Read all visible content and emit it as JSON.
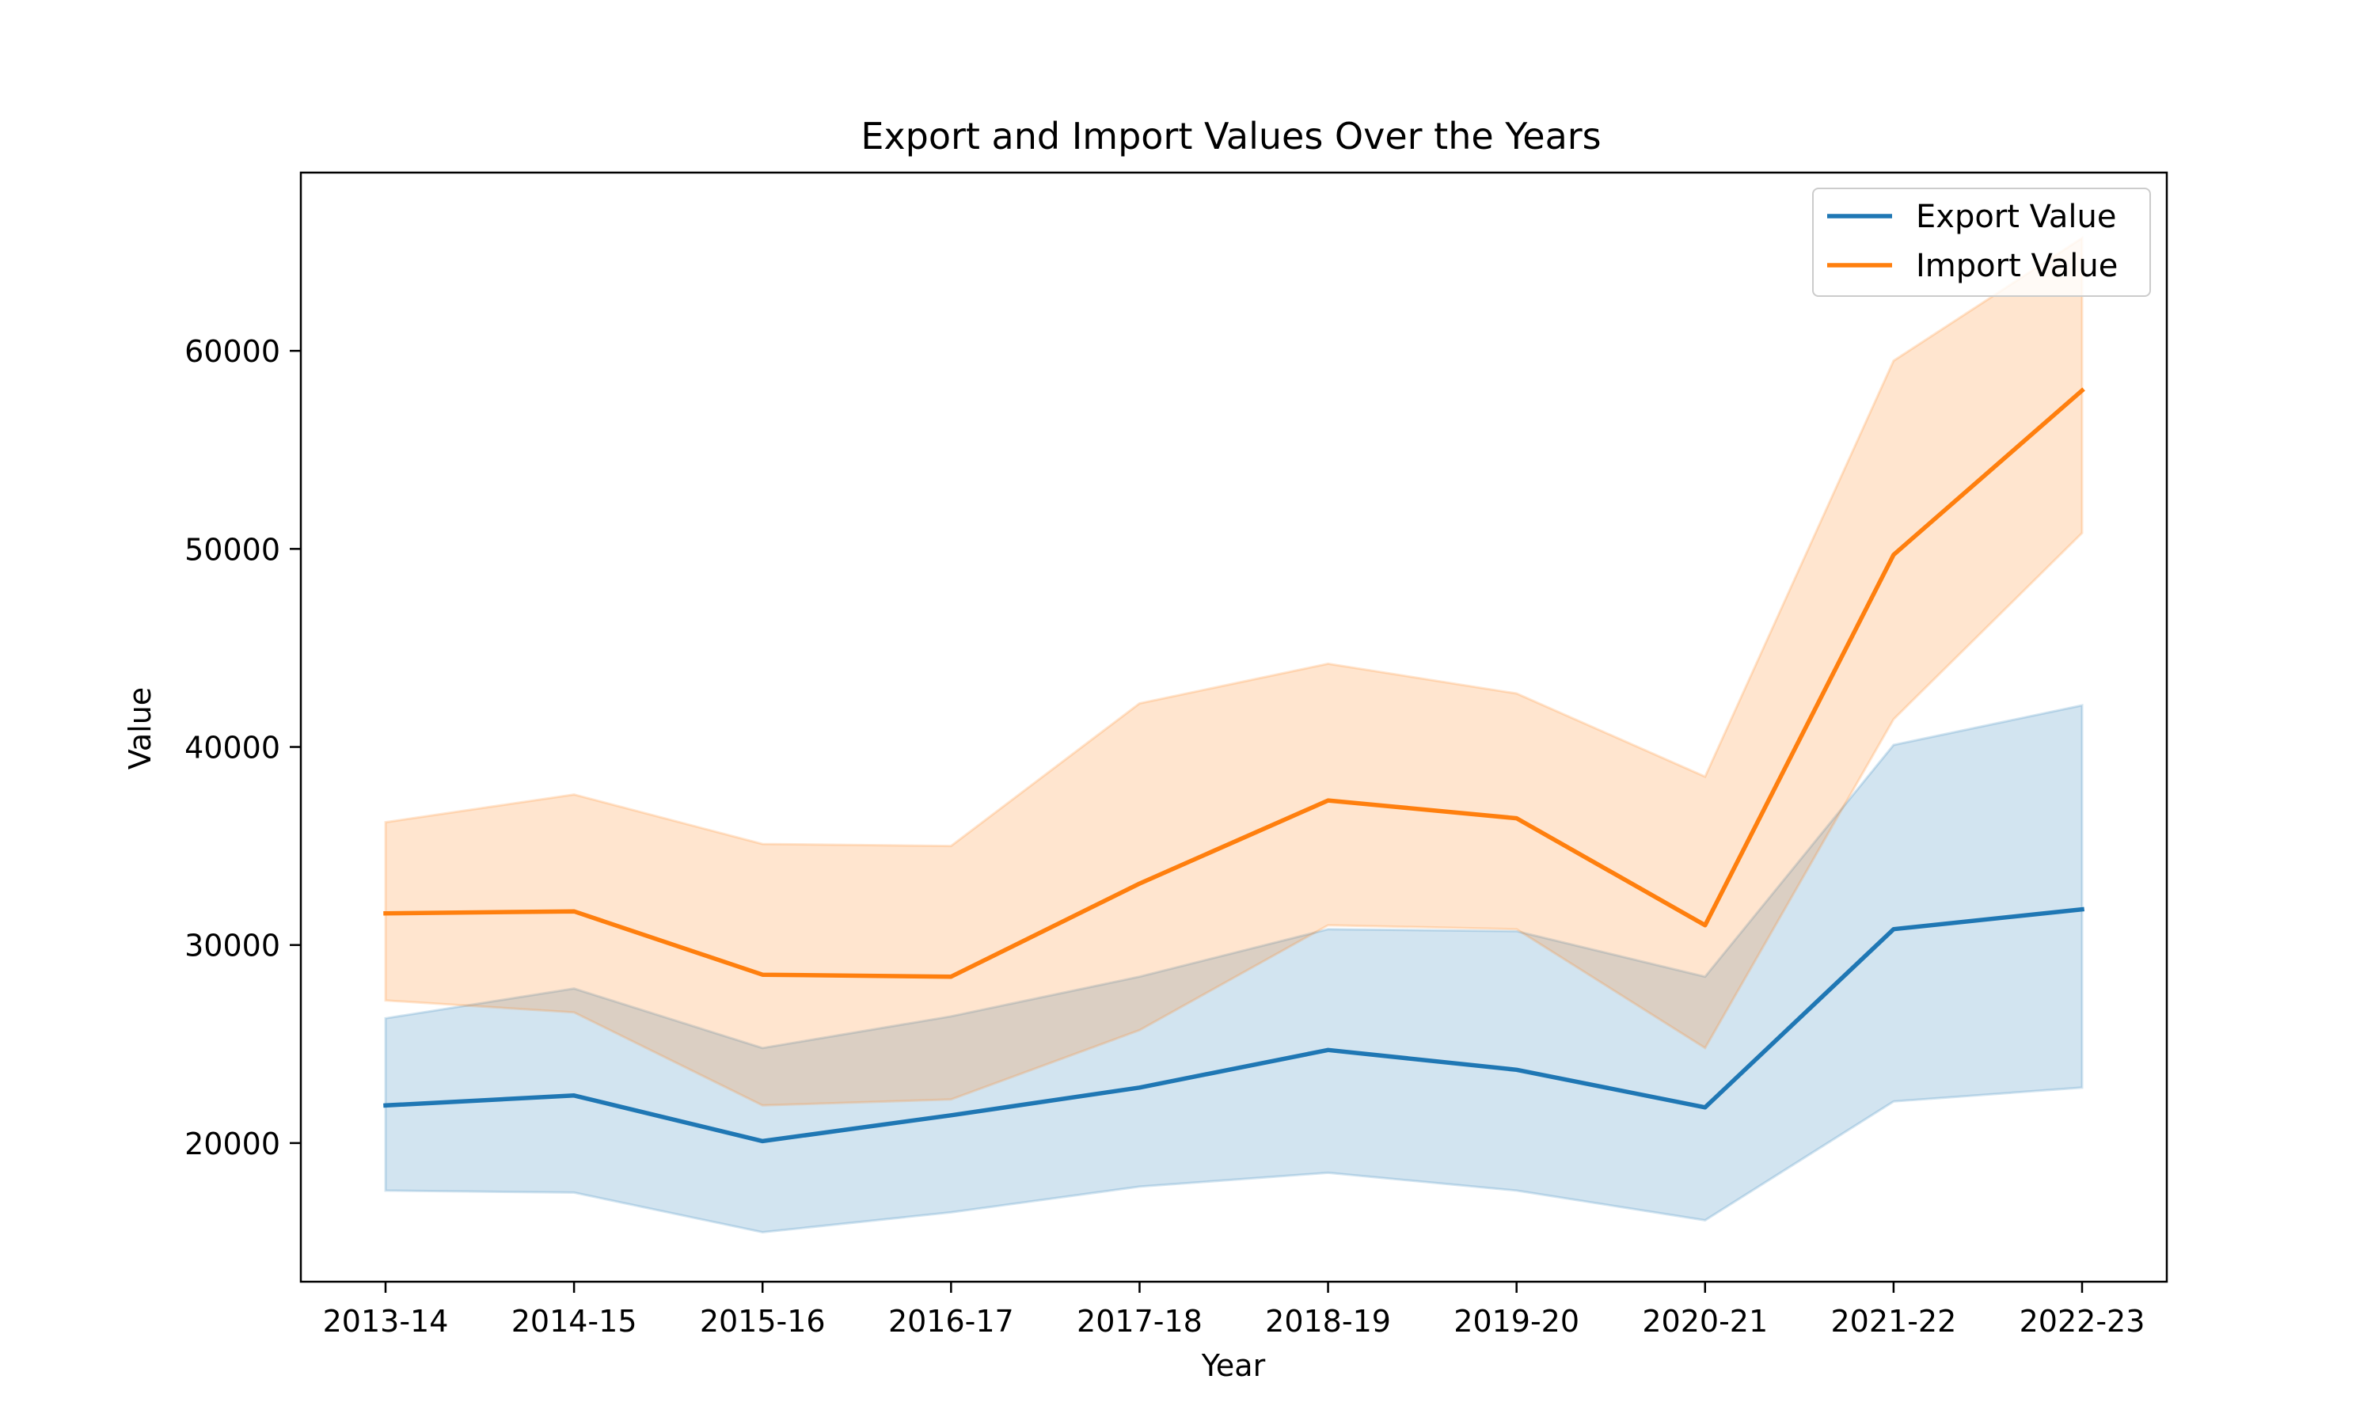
{
  "chart_data": {
    "type": "line",
    "title": "Export and Import Values Over the Years",
    "xlabel": "Year",
    "ylabel": "Value",
    "categories": [
      "2013-14",
      "2014-15",
      "2015-16",
      "2016-17",
      "2017-18",
      "2018-19",
      "2019-20",
      "2020-21",
      "2021-22",
      "2022-23"
    ],
    "ylim": [
      13000,
      69000
    ],
    "yticks": [
      20000,
      30000,
      40000,
      50000,
      60000
    ],
    "grid": false,
    "legend_position": "top-right",
    "series": [
      {
        "name": "Export Value",
        "color": "#1f77b4",
        "values": [
          21900,
          22400,
          20100,
          21400,
          22800,
          24700,
          23700,
          21800,
          30800,
          31800
        ],
        "band_lower": [
          17600,
          17500,
          15500,
          16500,
          17800,
          18500,
          17600,
          16100,
          22100,
          22800
        ],
        "band_upper": [
          26300,
          27800,
          24800,
          26400,
          28400,
          30800,
          30700,
          28400,
          40100,
          42100
        ]
      },
      {
        "name": "Import Value",
        "color": "#ff7f0e",
        "values": [
          31600,
          31700,
          28500,
          28400,
          33100,
          37300,
          36400,
          31000,
          49700,
          58000
        ],
        "band_lower": [
          27200,
          26600,
          21900,
          22200,
          25700,
          31000,
          30800,
          24800,
          41400,
          50800
        ],
        "band_upper": [
          36200,
          37600,
          35100,
          35000,
          42200,
          44200,
          42700,
          38500,
          59500,
          65700
        ]
      }
    ]
  }
}
